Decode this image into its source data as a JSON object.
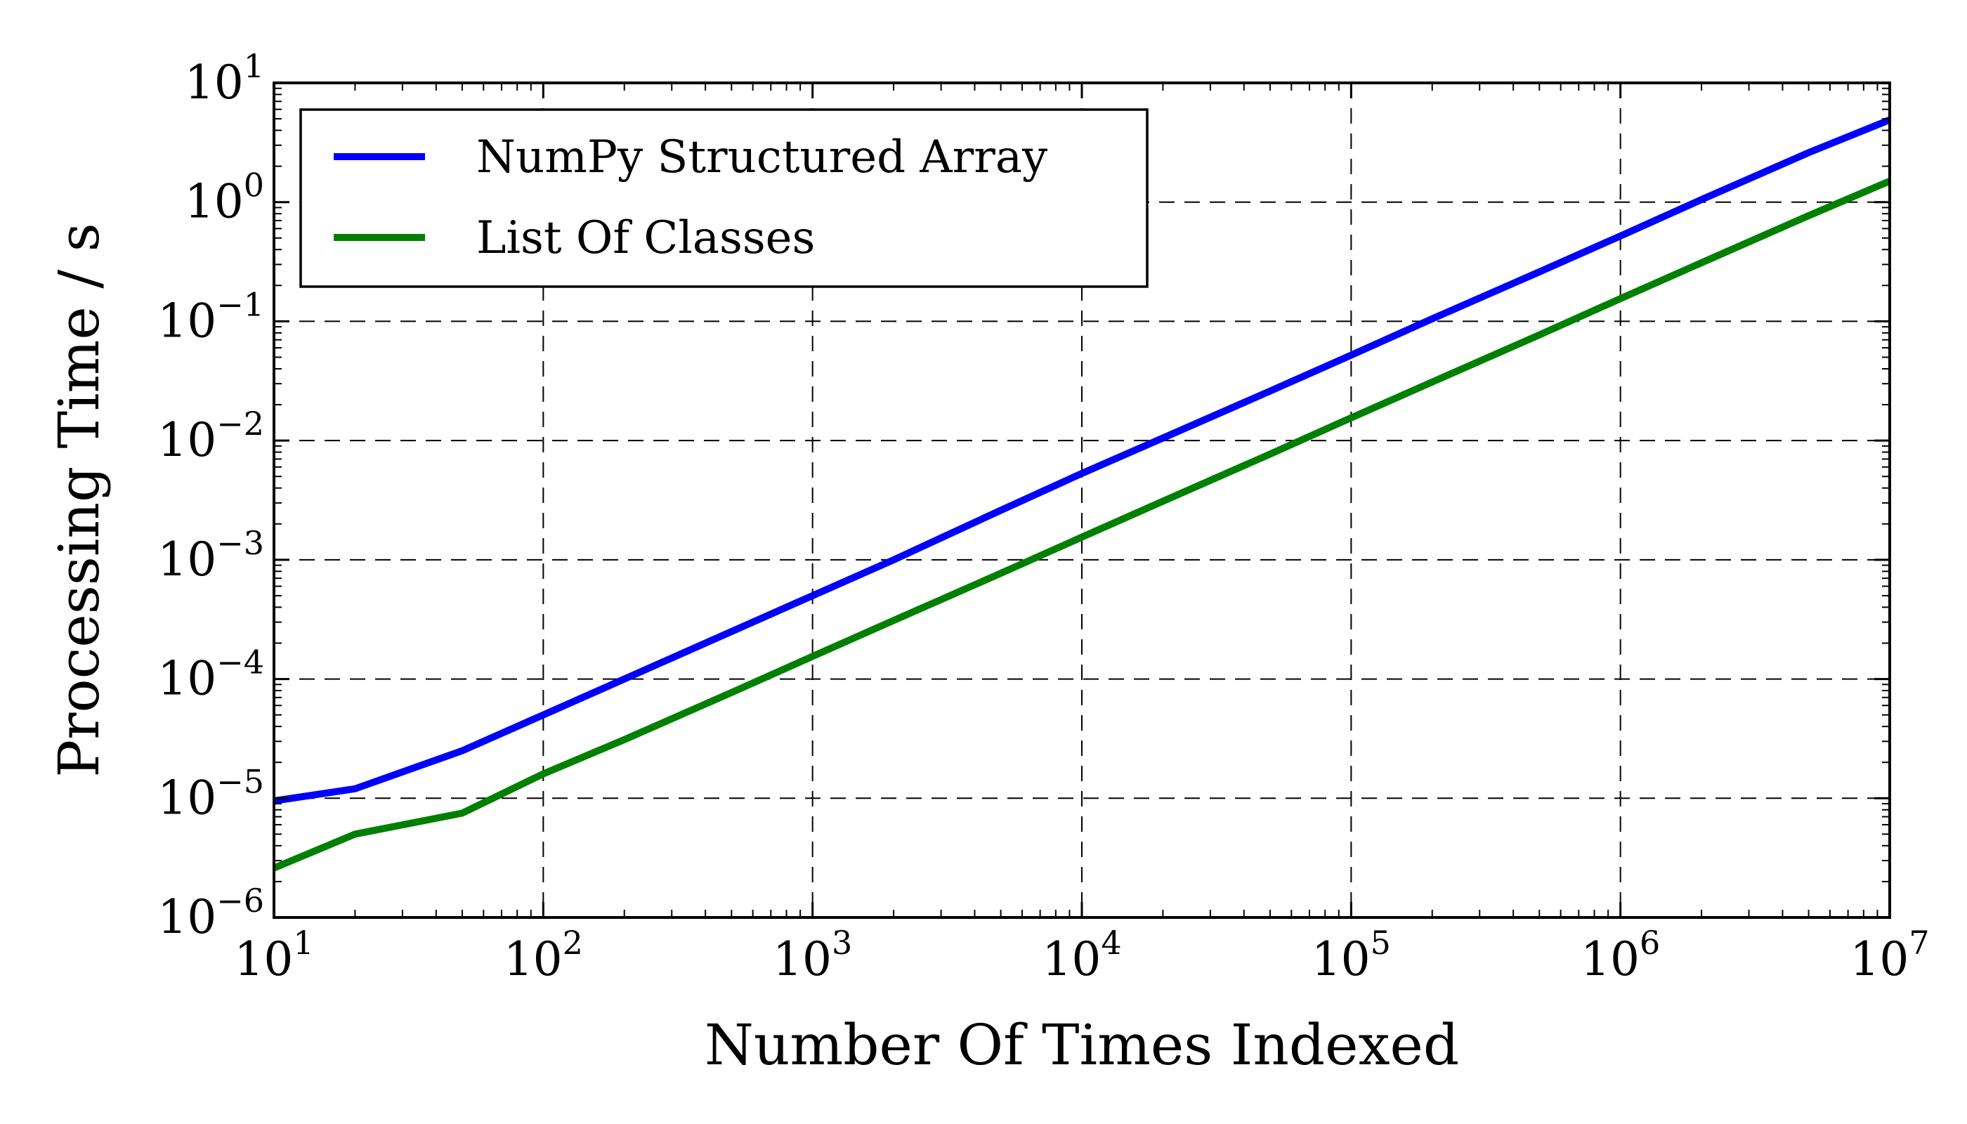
{
  "chart_data": {
    "type": "line",
    "x_scale": "log",
    "y_scale": "log",
    "xlim": [
      10,
      10000000
    ],
    "ylim": [
      1e-06,
      10
    ],
    "grid": true,
    "grid_style": "dashed",
    "legend_position": "top-left",
    "xlabel": "Number Of Times Indexed",
    "ylabel": "Processing Time / s",
    "x_ticks": [
      {
        "value": 10,
        "base": "10",
        "exp": "1"
      },
      {
        "value": 100,
        "base": "10",
        "exp": "2"
      },
      {
        "value": 1000,
        "base": "10",
        "exp": "3"
      },
      {
        "value": 10000,
        "base": "10",
        "exp": "4"
      },
      {
        "value": 100000,
        "base": "10",
        "exp": "5"
      },
      {
        "value": 1000000,
        "base": "10",
        "exp": "6"
      },
      {
        "value": 10000000,
        "base": "10",
        "exp": "7"
      }
    ],
    "y_ticks": [
      {
        "value": 1e-06,
        "base": "10",
        "exp": "−6"
      },
      {
        "value": 1e-05,
        "base": "10",
        "exp": "−5"
      },
      {
        "value": 0.0001,
        "base": "10",
        "exp": "−4"
      },
      {
        "value": 0.001,
        "base": "10",
        "exp": "−3"
      },
      {
        "value": 0.01,
        "base": "10",
        "exp": "−2"
      },
      {
        "value": 0.1,
        "base": "10",
        "exp": "−1"
      },
      {
        "value": 1,
        "base": "10",
        "exp": "0"
      },
      {
        "value": 10,
        "base": "10",
        "exp": "1"
      }
    ],
    "series": [
      {
        "name": "NumPy Structured Array",
        "color": "#0000ff",
        "x": [
          10,
          20,
          50,
          100,
          200,
          500,
          1000,
          2000,
          5000,
          10000,
          20000,
          50000,
          100000,
          200000,
          500000,
          1000000,
          2000000,
          5000000,
          10000000
        ],
        "y": [
          9.5e-06,
          1.2e-05,
          2.5e-05,
          5e-05,
          0.0001,
          0.00025,
          0.0005,
          0.001,
          0.0026,
          0.0053,
          0.0105,
          0.026,
          0.052,
          0.105,
          0.26,
          0.52,
          1.05,
          2.6,
          4.9
        ]
      },
      {
        "name": "List Of Classes",
        "color": "#008000",
        "x": [
          10,
          20,
          50,
          100,
          200,
          500,
          1000,
          2000,
          5000,
          10000,
          20000,
          50000,
          100000,
          200000,
          500000,
          1000000,
          2000000,
          5000000,
          10000000
        ],
        "y": [
          2.6e-06,
          5e-06,
          7.5e-06,
          1.6e-05,
          3.1e-05,
          7.7e-05,
          0.000155,
          0.00031,
          0.00077,
          0.00155,
          0.0031,
          0.0077,
          0.0155,
          0.031,
          0.077,
          0.155,
          0.31,
          0.77,
          1.5
        ]
      }
    ]
  }
}
